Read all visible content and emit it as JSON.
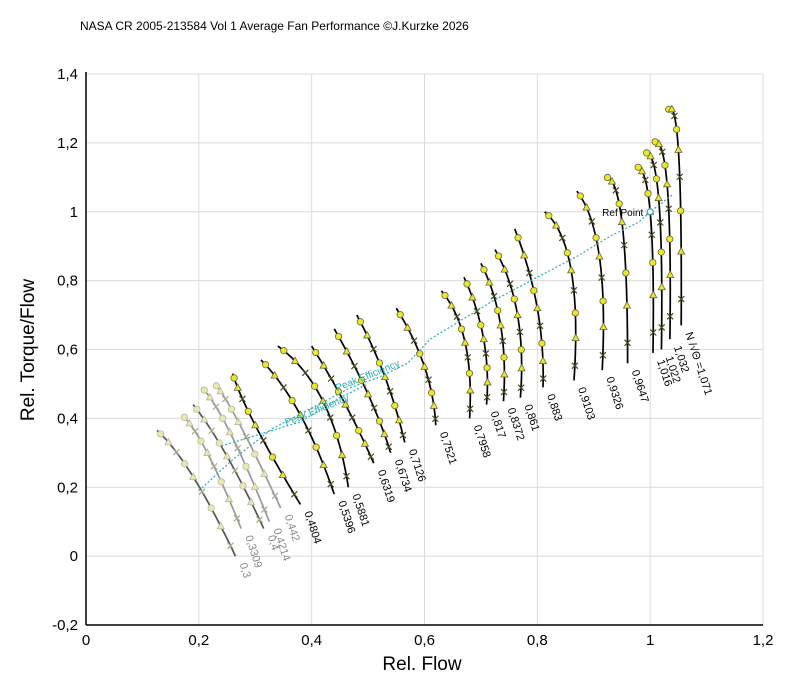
{
  "chart_data": {
    "type": "line",
    "title": "NASA CR 2005-213584 Vol 1 Average Fan Performance ©J.Kurzke 2026",
    "xlabel": "Rel. Flow",
    "ylabel": "Rel. Torque/Flow",
    "xlim": [
      0,
      1.2
    ],
    "ylim": [
      -0.2,
      1.4
    ],
    "x_ticks": [
      "0",
      "0,2",
      "0,4",
      "0,6",
      "0,8",
      "1",
      "1,2"
    ],
    "y_ticks": [
      "-0,2",
      "0",
      "0,2",
      "0,4",
      "0,6",
      "0,8",
      "1",
      "1,2",
      "1,4"
    ],
    "grid": true,
    "speed_lines": [
      {
        "name": "0,3",
        "color": "#555555",
        "points": [
          [
            0.126,
            0.365
          ],
          [
            0.19,
            0.23
          ],
          [
            0.265,
            0.0
          ]
        ]
      },
      {
        "name": "0,3309",
        "color": "#999999",
        "points": [
          [
            0.17,
            0.41
          ],
          [
            0.215,
            0.3
          ],
          [
            0.275,
            0.08
          ]
        ]
      },
      {
        "name": "0,4",
        "color": "#555555",
        "points": [
          [
            0.19,
            0.44
          ],
          [
            0.25,
            0.29
          ],
          [
            0.315,
            0.08
          ]
        ]
      },
      {
        "name": "0,4214",
        "color": "#999999",
        "points": [
          [
            0.205,
            0.49
          ],
          [
            0.255,
            0.36
          ],
          [
            0.325,
            0.1
          ]
        ]
      },
      {
        "name": "0,442",
        "color": "#999999",
        "points": [
          [
            0.228,
            0.5
          ],
          [
            0.27,
            0.39
          ],
          [
            0.345,
            0.14
          ]
        ]
      },
      {
        "name": "0,4804",
        "color": "#000000",
        "points": [
          [
            0.26,
            0.53
          ],
          [
            0.3,
            0.38
          ],
          [
            0.38,
            0.15
          ]
        ]
      },
      {
        "name": "0,5396",
        "color": "#000000",
        "points": [
          [
            0.31,
            0.57
          ],
          [
            0.38,
            0.41
          ],
          [
            0.44,
            0.18
          ]
        ]
      },
      {
        "name": "0,5881",
        "color": "#000000",
        "points": [
          [
            0.34,
            0.61
          ],
          [
            0.42,
            0.45
          ],
          [
            0.465,
            0.2
          ]
        ]
      },
      {
        "name": "0,6319",
        "color": "#000000",
        "points": [
          [
            0.4,
            0.61
          ],
          [
            0.46,
            0.44
          ],
          [
            0.51,
            0.27
          ]
        ]
      },
      {
        "name": "0,6734",
        "color": "#000000",
        "points": [
          [
            0.44,
            0.66
          ],
          [
            0.5,
            0.47
          ],
          [
            0.54,
            0.3
          ]
        ]
      },
      {
        "name": "0,7126",
        "color": "#000000",
        "points": [
          [
            0.48,
            0.7
          ],
          [
            0.53,
            0.52
          ],
          [
            0.565,
            0.33
          ]
        ]
      },
      {
        "name": "0,7521",
        "color": "#000000",
        "points": [
          [
            0.55,
            0.72
          ],
          [
            0.6,
            0.55
          ],
          [
            0.62,
            0.38
          ]
        ]
      },
      {
        "name": "0,7958",
        "color": "#000000",
        "points": [
          [
            0.63,
            0.77
          ],
          [
            0.672,
            0.62
          ],
          [
            0.68,
            0.4
          ]
        ]
      },
      {
        "name": "0,817",
        "color": "#000000",
        "points": [
          [
            0.67,
            0.81
          ],
          [
            0.705,
            0.63
          ],
          [
            0.71,
            0.44
          ]
        ]
      },
      {
        "name": "0,8372",
        "color": "#000000",
        "points": [
          [
            0.7,
            0.85
          ],
          [
            0.735,
            0.67
          ],
          [
            0.74,
            0.45
          ]
        ]
      },
      {
        "name": "0,861",
        "color": "#000000",
        "points": [
          [
            0.725,
            0.89
          ],
          [
            0.765,
            0.7
          ],
          [
            0.77,
            0.46
          ]
        ]
      },
      {
        "name": "0,883",
        "color": "#000000",
        "points": [
          [
            0.76,
            0.95
          ],
          [
            0.8,
            0.72
          ],
          [
            0.81,
            0.49
          ]
        ]
      },
      {
        "name": "0,9103",
        "color": "#000000",
        "points": [
          [
            0.813,
            1.0
          ],
          [
            0.86,
            0.83
          ],
          [
            0.865,
            0.51
          ]
        ]
      },
      {
        "name": "0,9326",
        "color": "#000000",
        "points": [
          [
            0.87,
            1.06
          ],
          [
            0.91,
            0.87
          ],
          [
            0.915,
            0.54
          ]
        ]
      },
      {
        "name": "0,9647",
        "color": "#000000",
        "points": [
          [
            0.92,
            1.1
          ],
          [
            0.95,
            0.97
          ],
          [
            0.96,
            0.56
          ]
        ]
      },
      {
        "name": "1,016",
        "color": "#000000",
        "points": [
          [
            0.975,
            1.13
          ],
          [
            1.0,
            1.0
          ],
          [
            1.005,
            0.59
          ]
        ]
      },
      {
        "name": "1,022",
        "color": "#000000",
        "points": [
          [
            0.99,
            1.17
          ],
          [
            1.015,
            1.04
          ],
          [
            1.02,
            0.6
          ]
        ]
      },
      {
        "name": "1,032",
        "color": "#000000",
        "points": [
          [
            1.005,
            1.2
          ],
          [
            1.03,
            1.08
          ],
          [
            1.035,
            0.63
          ]
        ]
      },
      {
        "name": "1,071",
        "color": "#000000",
        "points": [
          [
            1.03,
            1.29
          ],
          [
            1.05,
            1.18
          ],
          [
            1.055,
            0.67
          ]
        ]
      }
    ],
    "label_prefix": "N /√Θ =",
    "peak_efficiency_line": {
      "name": "Peak Efficiency",
      "color": "#2aacb4",
      "points": [
        [
          0.2,
          0.19
        ],
        [
          0.26,
          0.28
        ],
        [
          0.33,
          0.37
        ],
        [
          0.4,
          0.43
        ],
        [
          0.47,
          0.49
        ],
        [
          0.52,
          0.52
        ],
        [
          0.57,
          0.56
        ],
        [
          0.61,
          0.63
        ],
        [
          0.65,
          0.67
        ],
        [
          0.72,
          0.74
        ],
        [
          0.8,
          0.81
        ],
        [
          0.87,
          0.87
        ],
        [
          0.93,
          0.93
        ],
        [
          0.98,
          0.97
        ],
        [
          1.0,
          1.0
        ],
        [
          1.04,
          1.05
        ]
      ]
    },
    "peak_efficiency_line_2": {
      "name": "Peak Efficiency",
      "color": "#2aacb4",
      "points": [
        [
          0.24,
          0.32
        ],
        [
          0.3,
          0.35
        ],
        [
          0.38,
          0.39
        ],
        [
          0.45,
          0.46
        ],
        [
          0.5,
          0.5
        ]
      ]
    },
    "ref_point": {
      "label": "Ref Point",
      "x": 1.0,
      "y": 1.0
    }
  }
}
